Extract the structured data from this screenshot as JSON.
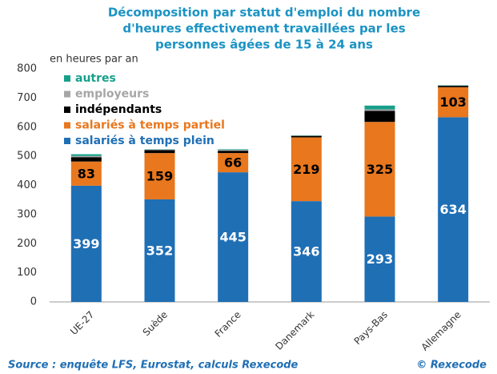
{
  "chart_data": {
    "type": "stacked_bar",
    "title": [
      "Décomposition par statut d'emploi du nombre",
      "d'heures effectivement travaillées par les",
      "personnes âgées de 15 à 24 ans"
    ],
    "y_label": "en heures par an",
    "source": "Source : enquête LFS, Eurostat, calculs Rexecode",
    "credit": "© Rexecode",
    "categories": [
      "UE-27",
      "Suède",
      "France",
      "Danemark",
      "Pays-Bas",
      "Allemagne"
    ],
    "series": [
      {
        "name": "salariés à temps plein",
        "color": "#1f6fb5",
        "show_labels": true,
        "label_color": "#ffffff",
        "values": [
          399,
          352,
          445,
          346,
          293,
          634
        ]
      },
      {
        "name": "salariés à temps partiel",
        "color": "#e8771e",
        "show_labels": true,
        "label_color": "#000000",
        "values": [
          83,
          159,
          66,
          219,
          325,
          103
        ]
      },
      {
        "name": "indépendants",
        "color": "#000000",
        "show_labels": false,
        "values": [
          15,
          10,
          8,
          5,
          38,
          5
        ]
      },
      {
        "name": "employeurs",
        "color": "#a6a6a6",
        "show_labels": false,
        "values": [
          4,
          2,
          3,
          1,
          5,
          1
        ]
      },
      {
        "name": "autres",
        "color": "#17a08a",
        "show_labels": false,
        "values": [
          6,
          1,
          2,
          1,
          13,
          1
        ]
      }
    ],
    "ylim": [
      0,
      800
    ],
    "yticks": [
      0,
      100,
      200,
      300,
      400,
      500,
      600,
      700,
      800
    ],
    "grid": false
  }
}
